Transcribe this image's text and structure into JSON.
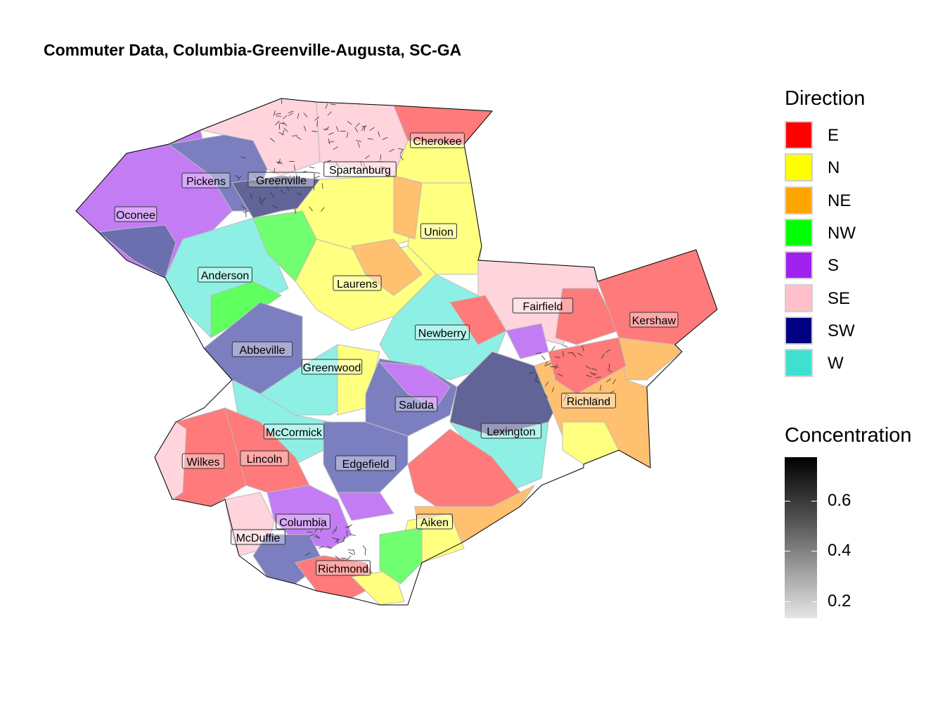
{
  "title": "Commuter Data, Columbia-Greenville-Augusta, SC-GA",
  "legend_direction": {
    "title": "Direction",
    "items": [
      {
        "label": "E",
        "color": "#ff0000"
      },
      {
        "label": "N",
        "color": "#ffff00"
      },
      {
        "label": "NE",
        "color": "#ffa500"
      },
      {
        "label": "NW",
        "color": "#00ff00"
      },
      {
        "label": "S",
        "color": "#a020f0"
      },
      {
        "label": "SE",
        "color": "#ffc0cb"
      },
      {
        "label": "SW",
        "color": "#000080"
      },
      {
        "label": "W",
        "color": "#40e0d0"
      }
    ]
  },
  "legend_concentration": {
    "title": "Concentration",
    "ticks": [
      "0.6",
      "0.4",
      "0.2"
    ]
  },
  "counties": [
    {
      "name": "Cherokee"
    },
    {
      "name": "Spartanburg"
    },
    {
      "name": "Pickens"
    },
    {
      "name": "Greenville"
    },
    {
      "name": "Oconee"
    },
    {
      "name": "Union"
    },
    {
      "name": "Anderson"
    },
    {
      "name": "Laurens"
    },
    {
      "name": "Fairfield"
    },
    {
      "name": "Kershaw"
    },
    {
      "name": "Newberry"
    },
    {
      "name": "Abbeville"
    },
    {
      "name": "Greenwood"
    },
    {
      "name": "Saluda"
    },
    {
      "name": "Richland"
    },
    {
      "name": "McCormick"
    },
    {
      "name": "Lexington"
    },
    {
      "name": "Wilkes"
    },
    {
      "name": "Lincoln"
    },
    {
      "name": "Edgefield"
    },
    {
      "name": "Columbia"
    },
    {
      "name": "Aiken"
    },
    {
      "name": "McDuffie"
    },
    {
      "name": "Richmond"
    }
  ]
}
